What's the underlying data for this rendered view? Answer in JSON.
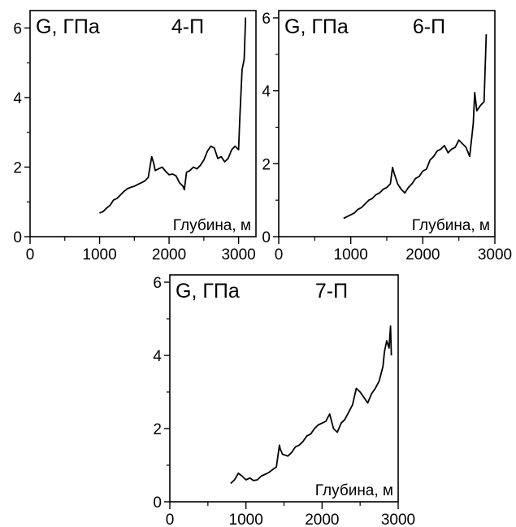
{
  "chart_data": [
    {
      "type": "line",
      "well_label": "4-П",
      "ylabel": "G, ГПа",
      "xlabel": "Глубина, м",
      "xlim": [
        0,
        3250
      ],
      "ylim": [
        0,
        6.5
      ],
      "x_ticks": [
        0,
        1000,
        2000,
        3000
      ],
      "y_ticks": [
        0,
        2,
        4,
        6
      ],
      "series": [
        {
          "x": [
            1000,
            1050,
            1100,
            1150,
            1200,
            1250,
            1300,
            1350,
            1400,
            1450,
            1500,
            1550,
            1600,
            1650,
            1700,
            1750,
            1780,
            1800,
            1850,
            1900,
            1950,
            2000,
            2050,
            2100,
            2150,
            2200,
            2220,
            2250,
            2300,
            2350,
            2400,
            2450,
            2500,
            2550,
            2600,
            2650,
            2700,
            2750,
            2800,
            2850,
            2900,
            2950,
            3000,
            3020,
            3050,
            3080,
            3100
          ],
          "values": [
            0.68,
            0.72,
            0.82,
            0.9,
            1.05,
            1.1,
            1.2,
            1.3,
            1.38,
            1.42,
            1.45,
            1.5,
            1.55,
            1.6,
            1.7,
            2.3,
            2.1,
            1.9,
            1.95,
            2.0,
            1.88,
            1.78,
            1.8,
            1.75,
            1.55,
            1.45,
            1.35,
            1.85,
            1.9,
            2.0,
            1.95,
            2.05,
            2.2,
            2.45,
            2.6,
            2.55,
            2.25,
            2.3,
            2.15,
            2.25,
            2.5,
            2.6,
            2.5,
            3.5,
            4.8,
            5.1,
            6.3
          ]
        }
      ]
    },
    {
      "type": "line",
      "well_label": "6-П",
      "ylabel": "G, ГПа",
      "xlabel": "Глубина, м",
      "xlim": [
        0,
        3000
      ],
      "ylim": [
        0,
        6.2
      ],
      "x_ticks": [
        0,
        1000,
        2000,
        3000
      ],
      "y_ticks": [
        0,
        2,
        4,
        6
      ],
      "series": [
        {
          "x": [
            900,
            950,
            1000,
            1050,
            1100,
            1150,
            1200,
            1250,
            1300,
            1350,
            1400,
            1450,
            1500,
            1550,
            1580,
            1600,
            1650,
            1700,
            1750,
            1800,
            1850,
            1900,
            1950,
            2000,
            2050,
            2100,
            2150,
            2200,
            2250,
            2300,
            2350,
            2400,
            2450,
            2500,
            2550,
            2600,
            2650,
            2700,
            2720,
            2750,
            2800,
            2850,
            2880
          ],
          "values": [
            0.5,
            0.55,
            0.6,
            0.65,
            0.75,
            0.8,
            0.9,
            1.0,
            1.05,
            1.15,
            1.2,
            1.3,
            1.35,
            1.45,
            1.9,
            1.75,
            1.45,
            1.3,
            1.2,
            1.35,
            1.45,
            1.6,
            1.65,
            1.8,
            1.85,
            2.1,
            2.2,
            2.35,
            2.4,
            2.5,
            2.3,
            2.4,
            2.45,
            2.65,
            2.55,
            2.45,
            2.2,
            3.1,
            3.95,
            3.45,
            3.6,
            3.7,
            5.55
          ]
        }
      ]
    },
    {
      "type": "line",
      "well_label": "7-П",
      "ylabel": "G, ГПа",
      "xlabel": "Глубина, м",
      "xlim": [
        0,
        3000
      ],
      "ylim": [
        0,
        6.2
      ],
      "x_ticks": [
        0,
        1000,
        2000,
        3000
      ],
      "y_ticks": [
        0,
        2,
        4,
        6
      ],
      "series": [
        {
          "x": [
            800,
            850,
            900,
            950,
            1000,
            1050,
            1100,
            1150,
            1200,
            1250,
            1300,
            1350,
            1400,
            1440,
            1450,
            1480,
            1550,
            1600,
            1650,
            1700,
            1750,
            1800,
            1850,
            1900,
            1950,
            2000,
            2050,
            2100,
            2150,
            2200,
            2250,
            2300,
            2350,
            2400,
            2450,
            2500,
            2550,
            2600,
            2650,
            2700,
            2750,
            2800,
            2820,
            2850,
            2880,
            2900,
            2910
          ],
          "values": [
            0.5,
            0.6,
            0.78,
            0.7,
            0.6,
            0.65,
            0.58,
            0.6,
            0.7,
            0.75,
            0.8,
            0.88,
            0.95,
            1.55,
            1.45,
            1.3,
            1.25,
            1.35,
            1.5,
            1.55,
            1.65,
            1.8,
            1.85,
            2.0,
            2.1,
            2.15,
            2.2,
            2.4,
            2.0,
            1.9,
            2.15,
            2.25,
            2.45,
            2.65,
            3.1,
            3.0,
            2.85,
            2.7,
            2.95,
            3.1,
            3.3,
            3.7,
            4.1,
            4.4,
            4.2,
            4.8,
            4.0
          ]
        }
      ]
    }
  ]
}
